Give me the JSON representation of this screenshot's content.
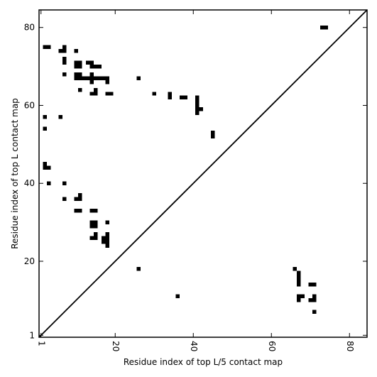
{
  "chart_data": {
    "type": "heatmap",
    "title": "",
    "xlabel": "Residue index of top L/5 contact map",
    "ylabel": "Residue index of top L contact map",
    "xlim": [
      0.5,
      84.5
    ],
    "ylim": [
      0.5,
      84.5
    ],
    "xticks": [
      1,
      20,
      40,
      60,
      80
    ],
    "yticks": [
      1,
      20,
      40,
      60,
      80
    ],
    "diagonal": true,
    "grid": false,
    "color": "#000000",
    "upper_contacts": [
      [
        2,
        75
      ],
      [
        3,
        75
      ],
      [
        6,
        74
      ],
      [
        7,
        74
      ],
      [
        7,
        75
      ],
      [
        10,
        74
      ],
      [
        7,
        72
      ],
      [
        7,
        71
      ],
      [
        10,
        71
      ],
      [
        11,
        71
      ],
      [
        13,
        71
      ],
      [
        14,
        71
      ],
      [
        10,
        70
      ],
      [
        11,
        70
      ],
      [
        14,
        70
      ],
      [
        15,
        70
      ],
      [
        16,
        70
      ],
      [
        7,
        68
      ],
      [
        10,
        68
      ],
      [
        11,
        68
      ],
      [
        14,
        68
      ],
      [
        10,
        67
      ],
      [
        11,
        67
      ],
      [
        12,
        67
      ],
      [
        13,
        67
      ],
      [
        14,
        67
      ],
      [
        15,
        67
      ],
      [
        16,
        67
      ],
      [
        17,
        67
      ],
      [
        18,
        67
      ],
      [
        26,
        67
      ],
      [
        14,
        66
      ],
      [
        18,
        66
      ],
      [
        11,
        64
      ],
      [
        15,
        64
      ],
      [
        14,
        63
      ],
      [
        15,
        63
      ],
      [
        18,
        63
      ],
      [
        19,
        63
      ],
      [
        30,
        63
      ],
      [
        34,
        63
      ],
      [
        34,
        62
      ],
      [
        37,
        62
      ],
      [
        38,
        62
      ],
      [
        41,
        62
      ],
      [
        41,
        61
      ],
      [
        41,
        60
      ],
      [
        41,
        59
      ],
      [
        42,
        59
      ],
      [
        41,
        58
      ],
      [
        2,
        57
      ],
      [
        6,
        57
      ],
      [
        2,
        54
      ],
      [
        45,
        53
      ],
      [
        45,
        52
      ],
      [
        2,
        45
      ],
      [
        2,
        44
      ],
      [
        3,
        44
      ],
      [
        3,
        40
      ],
      [
        7,
        40
      ],
      [
        11,
        37
      ],
      [
        10,
        36
      ],
      [
        11,
        36
      ],
      [
        7,
        36
      ],
      [
        10,
        33
      ],
      [
        11,
        33
      ],
      [
        14,
        33
      ],
      [
        15,
        33
      ],
      [
        18,
        30
      ],
      [
        14,
        30
      ],
      [
        15,
        30
      ],
      [
        14,
        29
      ],
      [
        15,
        29
      ],
      [
        15,
        27
      ],
      [
        18,
        27
      ],
      [
        14,
        26
      ],
      [
        15,
        26
      ],
      [
        17,
        26
      ],
      [
        18,
        26
      ],
      [
        17,
        25
      ],
      [
        18,
        25
      ],
      [
        18,
        24
      ]
    ],
    "lower_contacts": [
      [
        73,
        80
      ],
      [
        74,
        80
      ],
      [
        26,
        18
      ],
      [
        66,
        18
      ],
      [
        67,
        17
      ],
      [
        67,
        16
      ],
      [
        67,
        15
      ],
      [
        67,
        14
      ],
      [
        70,
        14
      ],
      [
        71,
        14
      ],
      [
        36,
        11
      ],
      [
        67,
        11
      ],
      [
        68,
        11
      ],
      [
        71,
        11
      ],
      [
        67,
        10
      ],
      [
        70,
        10
      ],
      [
        71,
        10
      ],
      [
        71,
        7
      ]
    ]
  }
}
